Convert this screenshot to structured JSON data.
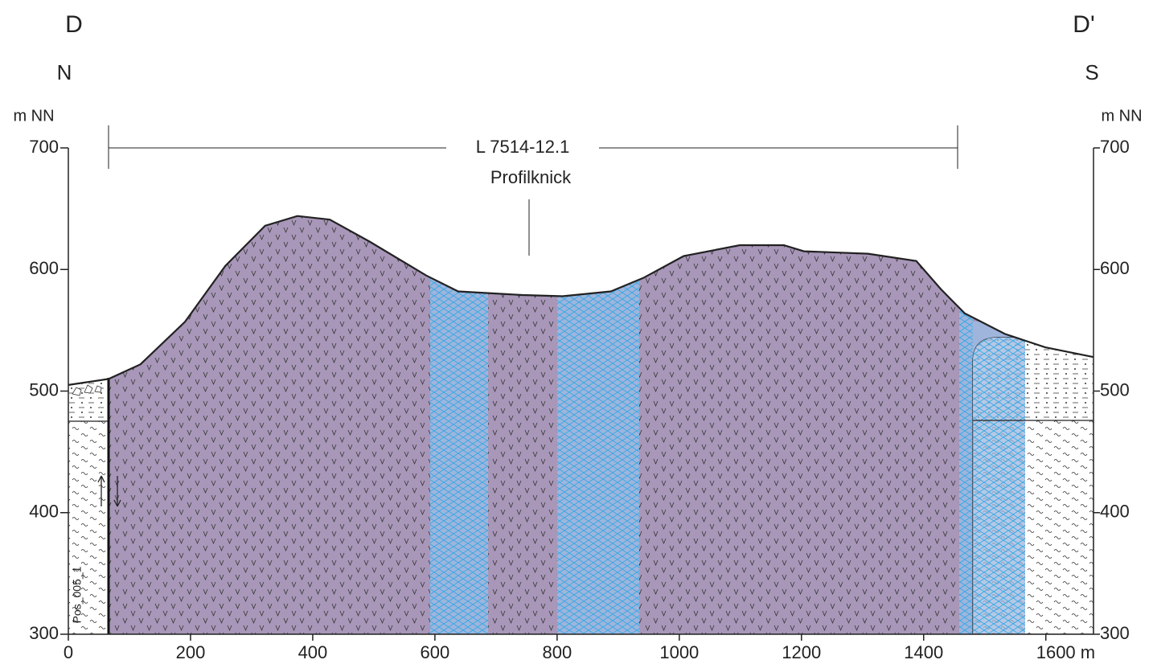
{
  "chart_data": {
    "type": "profile",
    "left_label": "D",
    "right_label": "D'",
    "left_direction": "N",
    "right_direction": "S",
    "y_unit": "m NN",
    "section_label": "L 7514-12.1",
    "annotation": "Profilknick",
    "borehole": "Pos_005_1",
    "xlim": [
      0,
      1678
    ],
    "ylim": [
      300,
      700
    ],
    "xticks": [
      0,
      200,
      400,
      600,
      800,
      1000,
      1200,
      1400,
      {
        "value": 1600,
        "label": "1600 m"
      }
    ],
    "yticks": [
      300,
      400,
      500,
      600,
      700
    ],
    "surface": {
      "x": [
        0,
        66,
        118,
        191,
        257,
        322,
        375,
        428,
        493,
        586,
        638,
        743,
        809,
        888,
        941,
        1007,
        1099,
        1171,
        1204,
        1309,
        1388,
        1428,
        1467,
        1533,
        1599,
        1678
      ],
      "y": [
        505,
        510,
        522,
        557,
        603,
        636,
        644,
        641,
        623,
        595,
        582,
        579,
        578,
        582,
        593,
        611,
        620,
        620,
        615,
        613,
        607,
        584,
        564,
        547,
        536,
        528
      ]
    },
    "colors": {
      "volcanic": "#a897b9",
      "band": "#9fb5dc",
      "band_hatch": "#2fa8e6"
    }
  }
}
